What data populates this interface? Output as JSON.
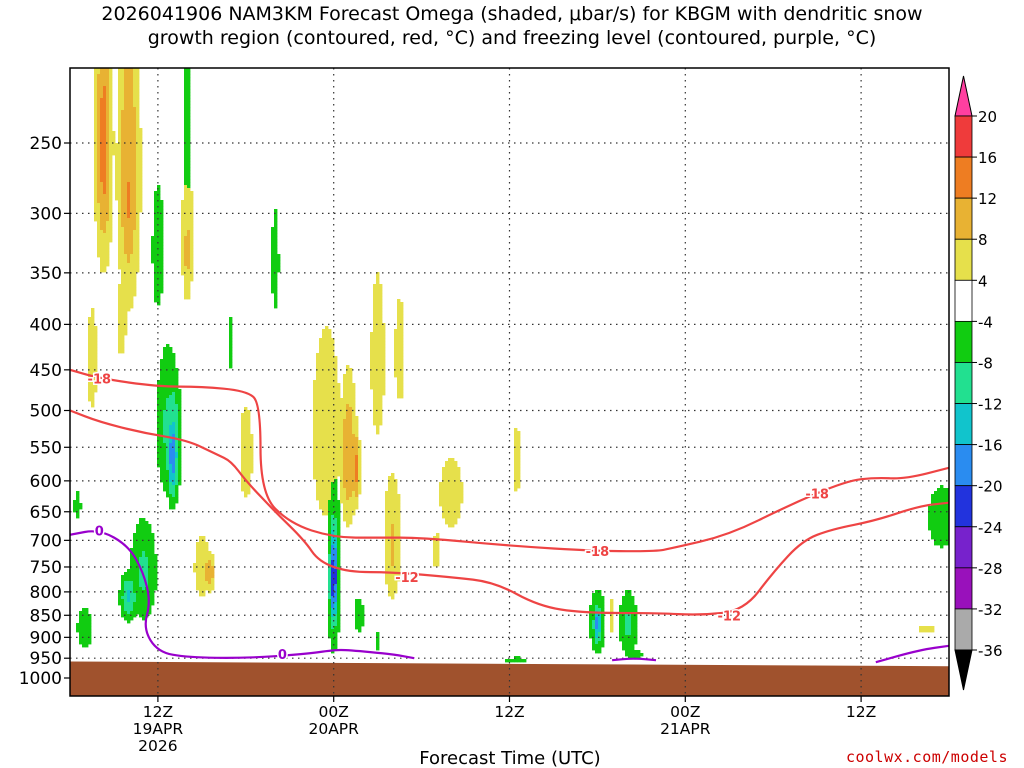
{
  "title": {
    "line1": "2026041906 NAM3KM Forecast Omega (shaded, μbar/s) for KBGM with dendritic snow",
    "line2": "growth region (contoured, red, °C) and freezing level (contoured, purple, °C)"
  },
  "credit": "coolwx.com/models",
  "colors": {
    "ground": "#a0522d",
    "dgz_contour": "#ee4444",
    "freezing_contour": "#9900cc",
    "grid": "#333333"
  },
  "chart_data": {
    "type": "heatmap",
    "title": "2026041906 NAM3KM Forecast Omega (shaded, μbar/s) for KBGM with dendritic snow growth region (contoured, red, °C) and freezing level (contoured, purple, °C)",
    "xlabel": "Forecast Time (UTC)",
    "ylabel": "",
    "x_axis": {
      "range_hours": [
        0,
        60
      ],
      "ticks": [
        {
          "hour": 6,
          "labels": [
            "12Z",
            "19APR",
            "2026"
          ]
        },
        {
          "hour": 18,
          "labels": [
            "00Z",
            "20APR"
          ]
        },
        {
          "hour": 30,
          "labels": [
            "12Z"
          ]
        },
        {
          "hour": 42,
          "labels": [
            "00Z",
            "21APR"
          ]
        },
        {
          "hour": 54,
          "labels": [
            "12Z"
          ]
        }
      ]
    },
    "y_axis": {
      "scale": "log-pressure",
      "range": [
        1000,
        200
      ],
      "ticks": [
        250,
        300,
        350,
        400,
        450,
        500,
        550,
        600,
        650,
        700,
        750,
        800,
        850,
        900,
        950,
        1000
      ]
    },
    "grid": true,
    "colorbar": {
      "labels": [
        "20",
        "16",
        "12",
        "8",
        "4",
        "-4",
        "-8",
        "-12",
        "-16",
        "-20",
        "-24",
        "-28",
        "-32",
        "-36"
      ],
      "colors": [
        "#ff3fa0",
        "#ef3b3b",
        "#ee7d22",
        "#e8b233",
        "#e6e04b",
        "#ffffff",
        "#11cc11",
        "#22e090",
        "#11c4cc",
        "#2a8cf0",
        "#2233dd",
        "#7722cc",
        "#9911bb",
        "#aaaaaa",
        "#000000"
      ],
      "placement": "right"
    },
    "omega_features": [
      {
        "t": 2.3,
        "p": 250,
        "wt": 0.6,
        "hp": 90,
        "value": 14
      },
      {
        "t": 4.0,
        "p": 270,
        "wt": 0.8,
        "hp": 110,
        "value": 12
      },
      {
        "t": 4.0,
        "p": 290,
        "wt": 0.3,
        "hp": 35,
        "value": 14
      },
      {
        "t": 1.5,
        "p": 440,
        "wt": 0.5,
        "hp": 90,
        "value": 6
      },
      {
        "t": 3.5,
        "p": 395,
        "wt": 0.5,
        "hp": 60,
        "value": 6
      },
      {
        "t": 8.0,
        "p": 240,
        "wt": 0.35,
        "hp": 110,
        "value": -6
      },
      {
        "t": 6.0,
        "p": 330,
        "wt": 0.8,
        "hp": 110,
        "value": -5
      },
      {
        "t": 8.0,
        "p": 320,
        "wt": 0.6,
        "hp": 90,
        "value": 6
      },
      {
        "t": 8.0,
        "p": 330,
        "wt": 0.25,
        "hp": 30,
        "value": 12
      },
      {
        "t": 14.0,
        "p": 340,
        "wt": 0.5,
        "hp": 90,
        "value": -5
      },
      {
        "t": 11.0,
        "p": 420,
        "wt": 0.3,
        "hp": 60,
        "value": -5
      },
      {
        "t": 6.7,
        "p": 520,
        "wt": 0.9,
        "hp": 110,
        "value": -9
      },
      {
        "t": 7.0,
        "p": 540,
        "wt": 0.6,
        "hp": 90,
        "value": -13
      },
      {
        "t": 7.0,
        "p": 560,
        "wt": 0.4,
        "hp": 70,
        "value": -19
      },
      {
        "t": 5.0,
        "p": 760,
        "wt": 1.0,
        "hp": 110,
        "value": -9
      },
      {
        "t": 4.0,
        "p": 810,
        "wt": 0.6,
        "hp": 50,
        "value": -13
      },
      {
        "t": 1.0,
        "p": 880,
        "wt": 0.6,
        "hp": 55,
        "value": -8
      },
      {
        "t": 0.5,
        "p": 640,
        "wt": 0.3,
        "hp": 30,
        "value": -7
      },
      {
        "t": 9.0,
        "p": 750,
        "wt": 0.8,
        "hp": 90,
        "value": 6
      },
      {
        "t": 9.5,
        "p": 760,
        "wt": 0.4,
        "hp": 40,
        "value": 12
      },
      {
        "t": 12.0,
        "p": 560,
        "wt": 0.9,
        "hp": 140,
        "value": 5
      },
      {
        "t": 17.5,
        "p": 530,
        "wt": 1.5,
        "hp": 200,
        "value": 6
      },
      {
        "t": 19.0,
        "p": 560,
        "wt": 0.6,
        "hp": 110,
        "value": 12
      },
      {
        "t": 19.5,
        "p": 580,
        "wt": 0.3,
        "hp": 60,
        "value": 14
      },
      {
        "t": 21.0,
        "p": 440,
        "wt": 0.6,
        "hp": 120,
        "value": 7
      },
      {
        "t": 22.5,
        "p": 430,
        "wt": 0.5,
        "hp": 90,
        "value": 6
      },
      {
        "t": 22.0,
        "p": 700,
        "wt": 0.8,
        "hp": 150,
        "value": 7
      },
      {
        "t": 22.0,
        "p": 710,
        "wt": 0.3,
        "hp": 60,
        "value": 12
      },
      {
        "t": 26.0,
        "p": 620,
        "wt": 1.6,
        "hp": 120,
        "value": 5
      },
      {
        "t": 25.0,
        "p": 720,
        "wt": 0.5,
        "hp": 70,
        "value": 5
      },
      {
        "t": 30.5,
        "p": 570,
        "wt": 0.6,
        "hp": 100,
        "value": 5
      },
      {
        "t": 18.0,
        "p": 760,
        "wt": 0.45,
        "hp": 170,
        "value": -12
      },
      {
        "t": 18.0,
        "p": 770,
        "wt": 0.3,
        "hp": 110,
        "value": -24
      },
      {
        "t": 18.0,
        "p": 770,
        "wt": 0.12,
        "hp": 50,
        "value": -38
      },
      {
        "t": 14.5,
        "p": 755,
        "wt": 0.12,
        "hp": 25,
        "value": -5
      },
      {
        "t": 19.7,
        "p": 850,
        "wt": 0.5,
        "hp": 60,
        "value": -6
      },
      {
        "t": 21.0,
        "p": 910,
        "wt": 0.3,
        "hp": 30,
        "value": -6
      },
      {
        "t": 36.0,
        "p": 865,
        "wt": 0.6,
        "hp": 80,
        "value": -9
      },
      {
        "t": 36.0,
        "p": 870,
        "wt": 0.3,
        "hp": 50,
        "value": -18
      },
      {
        "t": 37.0,
        "p": 850,
        "wt": 0.15,
        "hp": 60,
        "value": 6
      },
      {
        "t": 38.1,
        "p": 870,
        "wt": 0.7,
        "hp": 80,
        "value": -9
      },
      {
        "t": 38.5,
        "p": 940,
        "wt": 1.2,
        "hp": 25,
        "value": -5
      },
      {
        "t": 30.5,
        "p": 955,
        "wt": 1.5,
        "hp": 15,
        "value": -5
      },
      {
        "t": 59.5,
        "p": 660,
        "wt": 1.2,
        "hp": 70,
        "value": -7
      },
      {
        "t": 58.5,
        "p": 880,
        "wt": 1.2,
        "hp": 20,
        "value": 5
      }
    ],
    "dgz_contours": [
      {
        "label": "-18",
        "points": [
          [
            0,
            450
          ],
          [
            2,
            460
          ],
          [
            6,
            470
          ],
          [
            9,
            470
          ],
          [
            12,
            475
          ],
          [
            13,
            490
          ],
          [
            13,
            620
          ],
          [
            15,
            670
          ],
          [
            18,
            695
          ],
          [
            21,
            695
          ],
          [
            24,
            695
          ],
          [
            30,
            710
          ],
          [
            36,
            720
          ],
          [
            40,
            720
          ],
          [
            41,
            715
          ],
          [
            45,
            690
          ],
          [
            49,
            640
          ],
          [
            53,
            600
          ],
          [
            55,
            595
          ],
          [
            57,
            597
          ],
          [
            60,
            580
          ]
        ],
        "label_at": [
          [
            2,
            460
          ],
          [
            36,
            720
          ],
          [
            51,
            620
          ]
        ]
      },
      {
        "label": "-12",
        "points": [
          [
            0,
            500
          ],
          [
            2,
            515
          ],
          [
            5,
            530
          ],
          [
            8,
            540
          ],
          [
            10,
            560
          ],
          [
            11,
            570
          ],
          [
            12,
            600
          ],
          [
            14,
            650
          ],
          [
            16,
            700
          ],
          [
            17,
            740
          ],
          [
            19,
            760
          ],
          [
            22,
            760
          ],
          [
            26,
            770
          ],
          [
            29,
            780
          ],
          [
            32,
            830
          ],
          [
            35,
            845
          ],
          [
            40,
            845
          ],
          [
            43,
            850
          ],
          [
            46,
            840
          ],
          [
            48,
            760
          ],
          [
            50,
            700
          ],
          [
            52,
            680
          ],
          [
            55,
            665
          ],
          [
            58,
            640
          ],
          [
            60,
            635
          ]
        ],
        "label_at": [
          [
            23,
            770
          ],
          [
            45,
            850
          ]
        ]
      }
    ],
    "freezing_contours": [
      {
        "label": "0",
        "points": [
          [
            0,
            690
          ],
          [
            2,
            680
          ],
          [
            4,
            710
          ],
          [
            5,
            760
          ],
          [
            5.5,
            820
          ],
          [
            5,
            880
          ],
          [
            6,
            935
          ],
          [
            8,
            948
          ],
          [
            12,
            950
          ],
          [
            16,
            940
          ],
          [
            18,
            930
          ],
          [
            19,
            930
          ],
          [
            22,
            940
          ],
          [
            23.5,
            950
          ]
        ],
        "label_at": [
          [
            2,
            682
          ],
          [
            14.5,
            940
          ]
        ]
      },
      {
        "label": "0",
        "points": [
          [
            37,
            955
          ],
          [
            38.5,
            950
          ],
          [
            40,
            955
          ]
        ],
        "label_at": []
      },
      {
        "label": "0",
        "points": [
          [
            55,
            960
          ],
          [
            58,
            930
          ],
          [
            60,
            920
          ]
        ],
        "label_at": []
      }
    ],
    "ground": {
      "surface_pressure_start": 958,
      "surface_pressure_end": 970
    }
  }
}
